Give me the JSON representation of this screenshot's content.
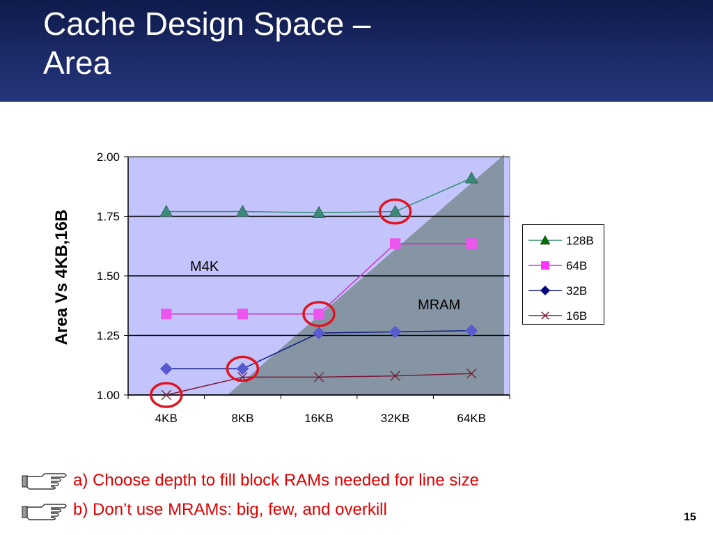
{
  "slide": {
    "title_line1": "Cache Design Space –",
    "title_line2": "Area",
    "page_number": "15",
    "bullets": [
      {
        "text": "a) Choose depth to fill block RAMs needed for line size",
        "icon": "pointing-hand-icon"
      },
      {
        "text": "b) Don’t use MRAMs: big, few, and overkill",
        "icon": "pointing-hand-icon"
      }
    ]
  },
  "chart_data": {
    "type": "line",
    "title": "",
    "xlabel": "",
    "ylabel": "Area Vs 4KB,16B",
    "categories": [
      "4KB",
      "8KB",
      "16KB",
      "32KB",
      "64KB"
    ],
    "ylim": [
      1.0,
      2.0
    ],
    "yticks": [
      "1.00",
      "1.25",
      "1.50",
      "1.75",
      "2.00"
    ],
    "grid": true,
    "legend_position": "right",
    "background_color": "#c4c4fc",
    "region_labels": [
      {
        "text": "M4K",
        "region": "upper-left"
      },
      {
        "text": "MRAM",
        "region": "lower-right"
      }
    ],
    "mram_region_color": "#8695a3",
    "highlight_color": "#e0141e",
    "highlights": [
      {
        "series": "16B",
        "category": "4KB"
      },
      {
        "series": "32B",
        "category": "8KB"
      },
      {
        "series": "64B",
        "category": "16KB"
      },
      {
        "series": "128B",
        "category": "32KB"
      }
    ],
    "series": [
      {
        "name": "128B",
        "values": [
          1.77,
          1.77,
          1.765,
          1.77,
          1.91
        ],
        "color": "#2e8b6e",
        "marker": "triangle",
        "marker_color": "#3a8a7a"
      },
      {
        "name": "64B",
        "values": [
          1.34,
          1.34,
          1.34,
          1.635,
          1.635
        ],
        "color": "#cc33cc",
        "marker": "square",
        "marker_color": "#ee55ee"
      },
      {
        "name": "32B",
        "values": [
          1.11,
          1.11,
          1.26,
          1.265,
          1.27
        ],
        "color": "#0a1a80",
        "marker": "diamond",
        "marker_color": "#5a5ad0"
      },
      {
        "name": "16B",
        "values": [
          1.0,
          1.075,
          1.075,
          1.08,
          1.09
        ],
        "color": "#7a1a3a",
        "marker": "x",
        "marker_color": "#6a2a3a"
      }
    ],
    "legend_marker_colors": {
      "128B": "#007000",
      "64B": "#ff33ff",
      "32B": "#000080",
      "16B": "#7a1a3a"
    }
  }
}
